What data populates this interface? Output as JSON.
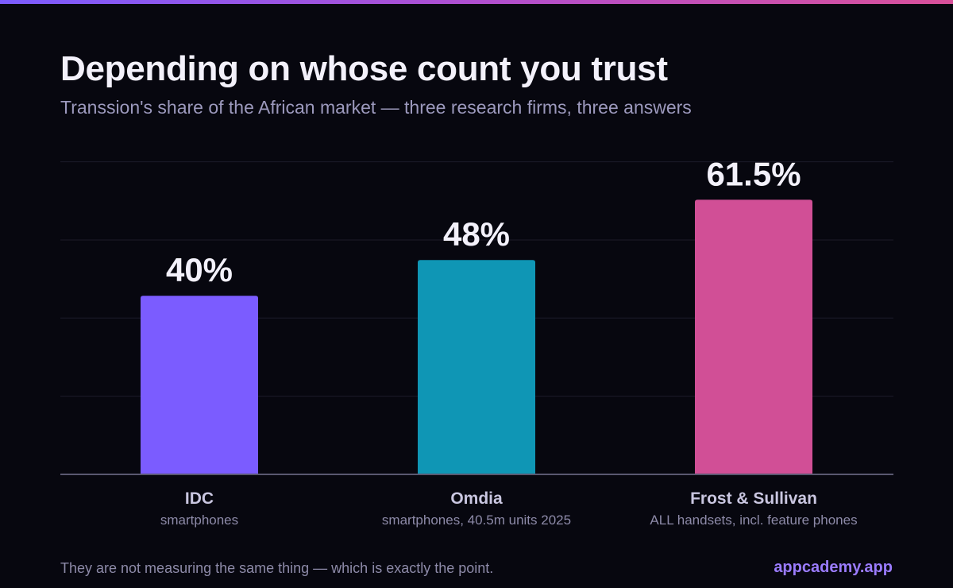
{
  "header": {
    "title": "Depending on whose count you trust",
    "subtitle": "Transsion's share of the African market — three research firms, three answers"
  },
  "chart_data": {
    "type": "bar",
    "title": "Depending on whose count you trust",
    "subtitle": "Transsion's share of the African market — three research firms, three answers",
    "categories": [
      "IDC",
      "Omdia",
      "Frost & Sullivan"
    ],
    "category_notes": [
      "smartphones",
      "smartphones, 40.5m units 2025",
      "ALL handsets, incl. feature phones"
    ],
    "values": [
      40,
      48,
      61.5
    ],
    "value_labels": [
      "40%",
      "48%",
      "61.5%"
    ],
    "unit": "%",
    "colors": [
      "#7b5cff",
      "#0f96b5",
      "#d14f96"
    ],
    "ylim": [
      0,
      70
    ],
    "grid": true,
    "legend": "none",
    "xlabel": "",
    "ylabel": ""
  },
  "footer": {
    "note": "They are not measuring the same thing — which is exactly the point.",
    "brand": "appcademy.app"
  }
}
